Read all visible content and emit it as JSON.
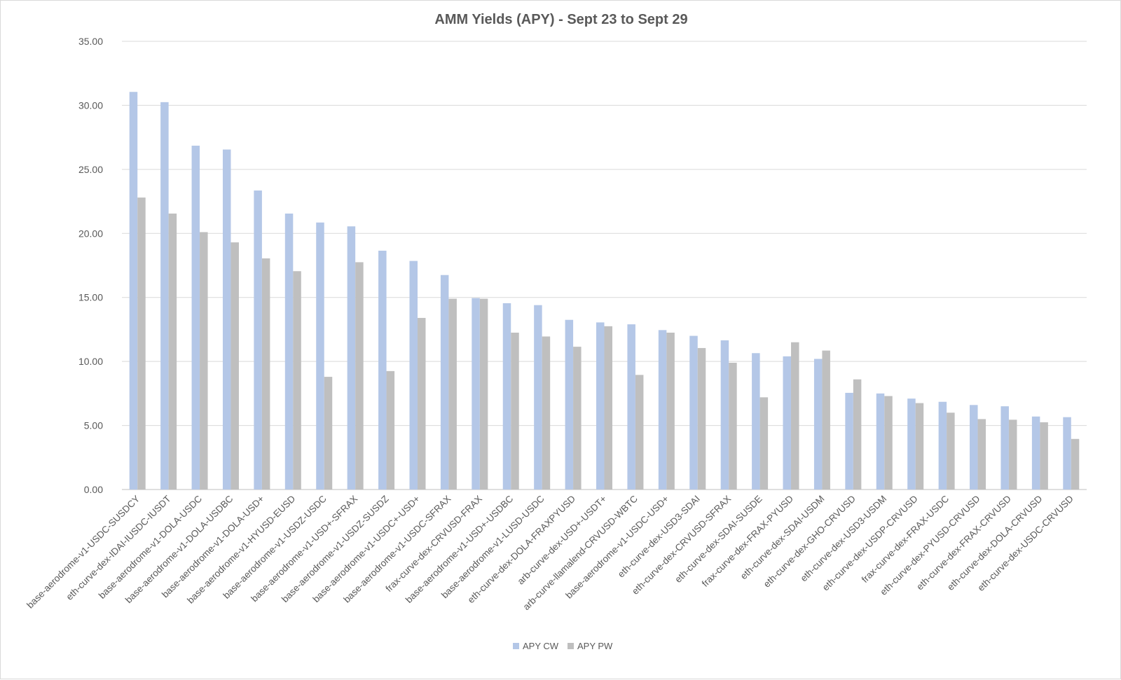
{
  "chart_data": {
    "type": "bar",
    "title": "AMM Yields (APY) - Sept 23 to Sept 29",
    "xlabel": "",
    "ylabel": "",
    "ylim": [
      0,
      35
    ],
    "yticks": [
      "0.00",
      "5.00",
      "10.00",
      "15.00",
      "20.00",
      "25.00",
      "30.00",
      "35.00"
    ],
    "grid": true,
    "legend_position": "bottom",
    "categories": [
      "base-aerodrome-v1-USDC-SUSDCY",
      "eth-curve-dex-IDAI-IUSDC-IUSDT",
      "base-aerodrome-v1-DOLA-USDC",
      "base-aerodrome-v1-DOLA-USDBC",
      "base-aerodrome-v1-DOLA-USD+",
      "base-aerodrome-v1-HYUSD-EUSD",
      "base-aerodrome-v1-USDZ-USDC",
      "base-aerodrome-v1-USD+-SFRAX",
      "base-aerodrome-v1-USDZ-SUSDZ",
      "base-aerodrome-v1-USDC+-USD+",
      "base-aerodrome-v1-USDC-SFRAX",
      "frax-curve-dex-CRVUSD-FRAX",
      "base-aerodrome-v1-USD+-USDBC",
      "base-aerodrome-v1-LUSD-USDC",
      "eth-curve-dex-DOLA-FRAXPYUSD",
      "arb-curve-dex-USD+-USDT+",
      "arb-curve-llamalend-CRVUSD-WBTC",
      "base-aerodrome-v1-USDC-USD+",
      "eth-curve-dex-USD3-SDAI",
      "eth-curve-dex-CRVUSD-SFRAX",
      "eth-curve-dex-SDAI-SUSDE",
      "frax-curve-dex-FRAX-PYUSD",
      "eth-curve-dex-SDAI-USDM",
      "eth-curve-dex-GHO-CRVUSD",
      "eth-curve-dex-USD3-USDM",
      "eth-curve-dex-USDP-CRVUSD",
      "frax-curve-dex-FRAX-USDC",
      "eth-curve-dex-PYUSD-CRVUSD",
      "eth-curve-dex-FRAX-CRVUSD",
      "eth-curve-dex-DOLA-CRVUSD",
      "eth-curve-dex-USDC-CRVUSD"
    ],
    "series": [
      {
        "name": "APY CW",
        "color": "#b4c7e7",
        "values": [
          31.05,
          30.25,
          26.85,
          26.55,
          23.35,
          21.55,
          20.85,
          20.55,
          18.65,
          17.85,
          16.75,
          14.95,
          14.55,
          14.4,
          13.25,
          13.05,
          12.9,
          12.45,
          12.0,
          11.65,
          10.65,
          10.4,
          10.2,
          7.55,
          7.5,
          7.1,
          6.85,
          6.6,
          6.5,
          5.7,
          5.65
        ]
      },
      {
        "name": "APY PW",
        "color": "#bfbfbf",
        "values": [
          22.8,
          21.55,
          20.1,
          19.3,
          18.05,
          17.05,
          8.8,
          17.75,
          9.25,
          13.4,
          14.9,
          14.9,
          12.25,
          11.95,
          11.15,
          12.75,
          8.95,
          12.25,
          11.05,
          9.9,
          7.2,
          11.5,
          10.85,
          8.6,
          7.3,
          6.75,
          6.0,
          5.5,
          5.45,
          5.25,
          3.95
        ]
      }
    ]
  }
}
